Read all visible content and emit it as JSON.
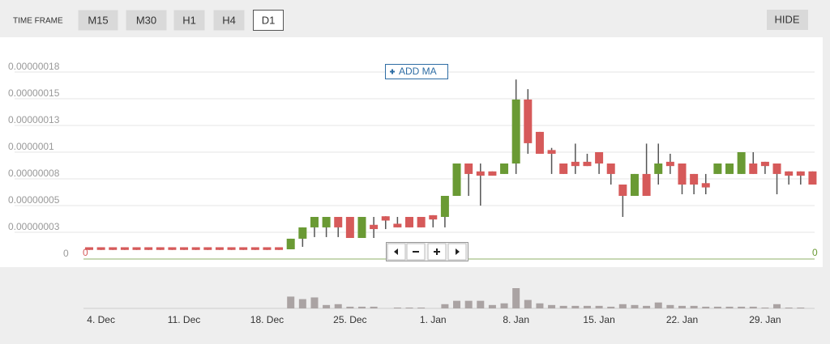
{
  "toolbar": {
    "label": "TIME FRAME",
    "timeframes": [
      "M15",
      "M30",
      "H1",
      "H4",
      "D1"
    ],
    "selected_index": 4,
    "hide": "HIDE"
  },
  "add_ma": "ADD MA",
  "chart_data": {
    "type": "candlestick",
    "categories": [
      null,
      "4. Dec",
      null,
      null,
      null,
      null,
      null,
      null,
      "11. Dec",
      null,
      null,
      null,
      null,
      null,
      null,
      "18. Dec",
      null,
      null,
      null,
      null,
      null,
      null,
      "25. Dec",
      null,
      null,
      null,
      null,
      null,
      null,
      "1. Jan",
      null,
      null,
      null,
      null,
      null,
      null,
      "8. Jan",
      null,
      null,
      null,
      null,
      null,
      null,
      "15. Jan",
      null,
      null,
      null,
      null,
      null,
      null,
      "22. Jan",
      null,
      null,
      null,
      null,
      null,
      null,
      "29. Jan",
      null,
      null,
      null,
      null
    ],
    "open": [
      1.1e-08,
      1.1e-08,
      1.1e-08,
      1.1e-08,
      1.1e-08,
      1.1e-08,
      1.1e-08,
      1.1e-08,
      1.1e-08,
      1.1e-08,
      1.1e-08,
      1.1e-08,
      1.1e-08,
      1.1e-08,
      1.1e-08,
      1.1e-08,
      1.1e-08,
      9.1e-09,
      1.9e-08,
      2.96e-08,
      2.96e-08,
      3.94e-08,
      3.94e-08,
      1.97e-08,
      3.2e-08,
      4e-08,
      3.3e-08,
      3.94e-08,
      3.94e-08,
      4.1e-08,
      3.94e-08,
      5.91e-08,
      8.94e-08,
      8.2e-08,
      8.2e-08,
      7.96e-08,
      8.94e-08,
      1.493e-07,
      1.19e-07,
      1.02e-07,
      8.94e-08,
      9.1e-08,
      9.1e-08,
      1e-07,
      8.94e-08,
      6.97e-08,
      5.91e-08,
      7.96e-08,
      7.96e-08,
      9.1e-08,
      8.94e-08,
      7.96e-08,
      7.1e-08,
      7.96e-08,
      7.96e-08,
      7.96e-08,
      8.94e-08,
      9.1e-08,
      8.94e-08,
      8.2e-08,
      8.2e-08,
      8.2e-08
    ],
    "high": [
      1.1e-08,
      1.1e-08,
      1.1e-08,
      1.1e-08,
      1.1e-08,
      1.1e-08,
      1.1e-08,
      1.1e-08,
      1.1e-08,
      1.1e-08,
      1.1e-08,
      1.1e-08,
      1.1e-08,
      1.1e-08,
      1.1e-08,
      1.1e-08,
      1.1e-08,
      1.9e-08,
      2.96e-08,
      3.94e-08,
      3.94e-08,
      3.94e-08,
      3.94e-08,
      3.94e-08,
      3.94e-08,
      4e-08,
      3.94e-08,
      3.94e-08,
      3.94e-08,
      4.1e-08,
      5.91e-08,
      8.94e-08,
      8.94e-08,
      8.94e-08,
      8.2e-08,
      8.94e-08,
      1.68e-07,
      1.59e-07,
      1.19e-07,
      1.04e-07,
      8.94e-08,
      1.08e-07,
      9.85e-08,
      1e-07,
      8.94e-08,
      6.97e-08,
      7.96e-08,
      1.08e-07,
      1.08e-07,
      9.85e-08,
      8.94e-08,
      7.96e-08,
      7.96e-08,
      8.94e-08,
      8.94e-08,
      1e-07,
      1e-07,
      9.1e-08,
      8.94e-08,
      8.2e-08,
      8.2e-08,
      8.2e-08
    ],
    "low": [
      8.5e-09,
      8.5e-09,
      8.5e-09,
      8.5e-09,
      8.5e-09,
      8.5e-09,
      8.5e-09,
      8.5e-09,
      8.5e-09,
      8.5e-09,
      8.5e-09,
      8.5e-09,
      8.5e-09,
      8.5e-09,
      8.5e-09,
      8.5e-09,
      8.5e-09,
      9.1e-09,
      1.14e-08,
      2.05e-08,
      2.05e-08,
      2.05e-08,
      1.97e-08,
      1.97e-08,
      1.97e-08,
      2.8e-08,
      2.96e-08,
      2.96e-08,
      2.96e-08,
      2.96e-08,
      2.96e-08,
      5.91e-08,
      5.91e-08,
      5e-08,
      7.8e-08,
      7.96e-08,
      7.96e-08,
      9.85e-08,
      9.85e-08,
      7.96e-08,
      7.96e-08,
      7.96e-08,
      8.7e-08,
      7.96e-08,
      6.97e-08,
      3.94e-08,
      5.91e-08,
      5.91e-08,
      6.97e-08,
      7.96e-08,
      6.06e-08,
      6.06e-08,
      6.06e-08,
      7.96e-08,
      7.96e-08,
      7.96e-08,
      7.96e-08,
      7.96e-08,
      6.06e-08,
      6.97e-08,
      6.97e-08,
      6.97e-08
    ],
    "close": [
      8.5e-09,
      8.5e-09,
      8.5e-09,
      8.5e-09,
      8.5e-09,
      8.5e-09,
      8.5e-09,
      8.5e-09,
      8.5e-09,
      8.5e-09,
      8.5e-09,
      8.5e-09,
      8.5e-09,
      8.5e-09,
      8.5e-09,
      8.5e-09,
      8.5e-09,
      1.9e-08,
      2.96e-08,
      3.94e-08,
      3.94e-08,
      2.96e-08,
      1.97e-08,
      3.94e-08,
      2.8e-08,
      3.6e-08,
      2.96e-08,
      2.96e-08,
      2.96e-08,
      3.7e-08,
      5.91e-08,
      8.94e-08,
      7.96e-08,
      7.8e-08,
      7.8e-08,
      8.94e-08,
      1.493e-07,
      1.084e-07,
      9.85e-08,
      9.85e-08,
      7.96e-08,
      8.7e-08,
      8.7e-08,
      8.94e-08,
      7.96e-08,
      5.91e-08,
      7.96e-08,
      5.91e-08,
      8.94e-08,
      8.7e-08,
      6.97e-08,
      6.97e-08,
      6.7e-08,
      8.94e-08,
      8.94e-08,
      1e-07,
      7.96e-08,
      8.7e-08,
      7.96e-08,
      7.8e-08,
      7.8e-08,
      6.97e-08
    ],
    "volume": [
      0,
      0,
      0,
      0,
      0,
      0,
      0,
      0,
      0,
      0,
      0,
      0,
      0,
      0,
      0,
      0,
      0,
      14,
      11,
      13,
      4,
      5,
      2,
      2,
      2,
      0,
      1,
      1,
      1,
      0,
      5,
      9,
      9,
      9,
      4,
      6,
      24,
      10,
      6,
      4,
      3,
      3,
      3,
      3,
      2,
      5,
      4,
      3,
      7,
      4,
      3,
      3,
      2,
      2,
      2,
      2,
      2,
      1,
      5,
      1,
      1,
      0
    ],
    "up_color": "#6a9a34",
    "down_color": "#d65a5a",
    "volume_color": "#aaa3a3",
    "ylim": [
      0,
      2e-07
    ],
    "yticks": [
      0,
      {
        "value": 2.5e-08,
        "label": "0.00000003"
      },
      {
        "value": 5e-08,
        "label": "0.00000005"
      },
      {
        "value": 7.5e-08,
        "label": "0.00000008"
      },
      {
        "value": 1e-07,
        "label": "0.0000001"
      },
      {
        "value": 1.25e-07,
        "label": "0.00000013"
      },
      {
        "value": 1.5e-07,
        "label": "0.00000015"
      },
      {
        "value": 1.75e-07,
        "label": "0.00000018"
      }
    ],
    "baseline_labels": [
      "0",
      "0"
    ],
    "grid": true
  }
}
